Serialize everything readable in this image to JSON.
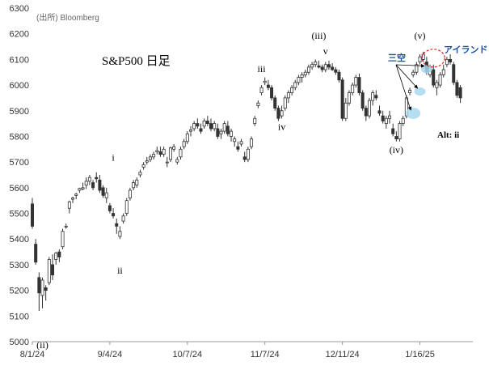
{
  "source": "(出所) Bloomberg",
  "colors": {
    "bull": "#ffffff",
    "bear": "#333333",
    "wick": "#333333",
    "gap": "#a8d8f0",
    "island": "#d62828"
  },
  "chart_data": {
    "type": "candlestick",
    "title": "S&P500 日足",
    "ylim": [
      5000,
      6300
    ],
    "yticks": [
      5000,
      5100,
      5200,
      5300,
      5400,
      5500,
      5600,
      5700,
      5800,
      5900,
      6000,
      6100,
      6200,
      6300
    ],
    "xticks": [
      "8/1/24",
      "9/4/24",
      "10/7/24",
      "11/7/24",
      "12/11/24",
      "1/16/25"
    ],
    "xtick_index": [
      0,
      23,
      46,
      69,
      92,
      115
    ],
    "n": 128,
    "candles": [
      [
        5537,
        5560,
        5440,
        5450
      ],
      [
        5380,
        5400,
        5300,
        5310
      ],
      [
        5250,
        5270,
        5120,
        5190
      ],
      [
        5180,
        5250,
        5130,
        5240
      ],
      [
        5210,
        5220,
        5160,
        5200
      ],
      [
        5230,
        5330,
        5220,
        5320
      ],
      [
        5300,
        5340,
        5240,
        5260
      ],
      [
        5320,
        5350,
        5300,
        5345
      ],
      [
        5350,
        5360,
        5310,
        5330
      ],
      [
        5370,
        5440,
        5360,
        5430
      ],
      [
        5450,
        5460,
        5440,
        5450
      ],
      [
        5520,
        5550,
        5500,
        5545
      ],
      [
        5555,
        5565,
        5540,
        5560
      ],
      [
        5570,
        5580,
        5555,
        5575
      ],
      [
        5590,
        5600,
        5580,
        5597
      ],
      [
        5595,
        5620,
        5590,
        5600
      ],
      [
        5610,
        5640,
        5595,
        5625
      ],
      [
        5625,
        5650,
        5610,
        5640
      ],
      [
        5620,
        5630,
        5590,
        5600
      ],
      [
        5640,
        5660,
        5620,
        5635
      ],
      [
        5630,
        5650,
        5580,
        5590
      ],
      [
        5600,
        5610,
        5560,
        5570
      ],
      [
        5560,
        5600,
        5540,
        5580
      ],
      [
        5530,
        5540,
        5500,
        5510
      ],
      [
        5500,
        5520,
        5480,
        5490
      ],
      [
        5460,
        5480,
        5420,
        5450
      ],
      [
        5410,
        5450,
        5400,
        5430
      ],
      [
        5470,
        5500,
        5460,
        5490
      ],
      [
        5500,
        5560,
        5490,
        5550
      ],
      [
        5560,
        5600,
        5550,
        5590
      ],
      [
        5600,
        5630,
        5590,
        5620
      ],
      [
        5610,
        5640,
        5600,
        5630
      ],
      [
        5650,
        5670,
        5640,
        5660
      ],
      [
        5680,
        5700,
        5670,
        5690
      ],
      [
        5700,
        5720,
        5690,
        5705
      ],
      [
        5710,
        5730,
        5700,
        5720
      ],
      [
        5720,
        5740,
        5710,
        5730
      ],
      [
        5740,
        5760,
        5730,
        5745
      ],
      [
        5740,
        5760,
        5720,
        5730
      ],
      [
        5730,
        5760,
        5720,
        5750
      ],
      [
        5700,
        5720,
        5680,
        5700
      ],
      [
        5710,
        5760,
        5700,
        5755
      ],
      [
        5750,
        5770,
        5740,
        5760
      ],
      [
        5700,
        5720,
        5690,
        5710
      ],
      [
        5720,
        5760,
        5710,
        5750
      ],
      [
        5760,
        5790,
        5750,
        5780
      ],
      [
        5780,
        5820,
        5770,
        5810
      ],
      [
        5820,
        5840,
        5800,
        5825
      ],
      [
        5830,
        5860,
        5820,
        5850
      ],
      [
        5850,
        5870,
        5830,
        5840
      ],
      [
        5830,
        5850,
        5810,
        5820
      ],
      [
        5840,
        5870,
        5830,
        5860
      ],
      [
        5860,
        5880,
        5840,
        5850
      ],
      [
        5850,
        5870,
        5820,
        5830
      ],
      [
        5830,
        5860,
        5820,
        5850
      ],
      [
        5830,
        5850,
        5790,
        5800
      ],
      [
        5810,
        5830,
        5790,
        5820
      ],
      [
        5820,
        5860,
        5810,
        5850
      ],
      [
        5840,
        5860,
        5800,
        5810
      ],
      [
        5800,
        5830,
        5780,
        5820
      ],
      [
        5780,
        5800,
        5760,
        5790
      ],
      [
        5760,
        5780,
        5740,
        5750
      ],
      [
        5770,
        5790,
        5760,
        5780
      ],
      [
        5720,
        5740,
        5700,
        5710
      ],
      [
        5710,
        5760,
        5700,
        5750
      ],
      [
        5760,
        5800,
        5750,
        5790
      ],
      [
        5850,
        5880,
        5840,
        5870
      ],
      [
        5920,
        5940,
        5910,
        5930
      ],
      [
        5970,
        6000,
        5960,
        5990
      ],
      [
        6010,
        6030,
        6000,
        6015
      ],
      [
        6000,
        6020,
        5980,
        5990
      ],
      [
        5990,
        6000,
        5940,
        5950
      ],
      [
        5950,
        5960,
        5900,
        5910
      ],
      [
        5910,
        5920,
        5860,
        5870
      ],
      [
        5880,
        5920,
        5870,
        5900
      ],
      [
        5910,
        5960,
        5900,
        5950
      ],
      [
        5950,
        5980,
        5930,
        5970
      ],
      [
        5970,
        6000,
        5960,
        5990
      ],
      [
        5990,
        6020,
        5980,
        6010
      ],
      [
        6010,
        6040,
        6000,
        6030
      ],
      [
        6030,
        6050,
        6010,
        6040
      ],
      [
        6040,
        6060,
        6030,
        6050
      ],
      [
        6050,
        6080,
        6040,
        6070
      ],
      [
        6070,
        6090,
        6060,
        6080
      ],
      [
        6080,
        6100,
        6070,
        6090
      ],
      [
        6075,
        6095,
        6065,
        6070
      ],
      [
        6070,
        6080,
        6050,
        6060
      ],
      [
        6060,
        6090,
        6050,
        6080
      ],
      [
        6080,
        6095,
        6060,
        6070
      ],
      [
        6070,
        6085,
        6055,
        6060
      ],
      [
        6060,
        6070,
        6040,
        6050
      ],
      [
        6050,
        6060,
        6010,
        6020
      ],
      [
        6020,
        6030,
        5860,
        5870
      ],
      [
        5870,
        5950,
        5860,
        5930
      ],
      [
        5930,
        5980,
        5920,
        5970
      ],
      [
        5970,
        6010,
        5960,
        6000
      ],
      [
        6000,
        6040,
        5990,
        6030
      ],
      [
        6030,
        6045,
        5960,
        5970
      ],
      [
        5970,
        5980,
        5900,
        5910
      ],
      [
        5910,
        5920,
        5860,
        5880
      ],
      [
        5880,
        5950,
        5870,
        5940
      ],
      [
        5940,
        5980,
        5920,
        5970
      ],
      [
        5960,
        5980,
        5940,
        5950
      ],
      [
        5900,
        5920,
        5880,
        5890
      ],
      [
        5880,
        5900,
        5850,
        5860
      ],
      [
        5850,
        5880,
        5830,
        5870
      ],
      [
        5870,
        5900,
        5850,
        5880
      ],
      [
        5830,
        5850,
        5800,
        5810
      ],
      [
        5800,
        5820,
        5780,
        5790
      ],
      [
        5790,
        5860,
        5780,
        5850
      ],
      [
        5850,
        5880,
        5840,
        5870
      ],
      [
        5880,
        5960,
        5870,
        5950
      ],
      [
        5970,
        5990,
        5960,
        5980
      ],
      [
        6040,
        6060,
        6030,
        6050
      ],
      [
        6050,
        6090,
        6040,
        6080
      ],
      [
        6090,
        6120,
        6080,
        6110
      ],
      [
        6100,
        6130,
        6090,
        6120
      ],
      [
        6090,
        6110,
        6040,
        6050
      ],
      [
        6040,
        6080,
        6030,
        6070
      ],
      [
        6060,
        6080,
        5990,
        6000
      ],
      [
        5990,
        6020,
        5960,
        6010
      ],
      [
        6000,
        6050,
        5990,
        6040
      ],
      [
        6040,
        6080,
        6030,
        6060
      ],
      [
        6080,
        6110,
        6070,
        6100
      ],
      [
        6100,
        6120,
        6080,
        6090
      ],
      [
        6080,
        6090,
        6000,
        6010
      ],
      [
        6010,
        6020,
        5950,
        5960
      ],
      [
        5990,
        6000,
        5930,
        5950
      ]
    ],
    "annotations": [
      {
        "text": "(ii)",
        "i": 3,
        "price": 4975
      },
      {
        "text": "i",
        "i": 24,
        "price": 5705
      },
      {
        "text": "ii",
        "i": 26,
        "price": 5265
      },
      {
        "text": "iii",
        "i": 68,
        "price": 6050
      },
      {
        "text": "iv",
        "i": 74,
        "price": 5825
      },
      {
        "text": "(iii)",
        "i": 85,
        "price": 6180
      },
      {
        "text": "v",
        "i": 87,
        "price": 6120
      },
      {
        "text": "(iv)",
        "i": 108,
        "price": 5735
      },
      {
        "text": "(v)",
        "i": 115,
        "price": 6180
      }
    ],
    "gap_label": "三空",
    "island_label": "アイランド",
    "alt_label": "Alt: ii"
  }
}
